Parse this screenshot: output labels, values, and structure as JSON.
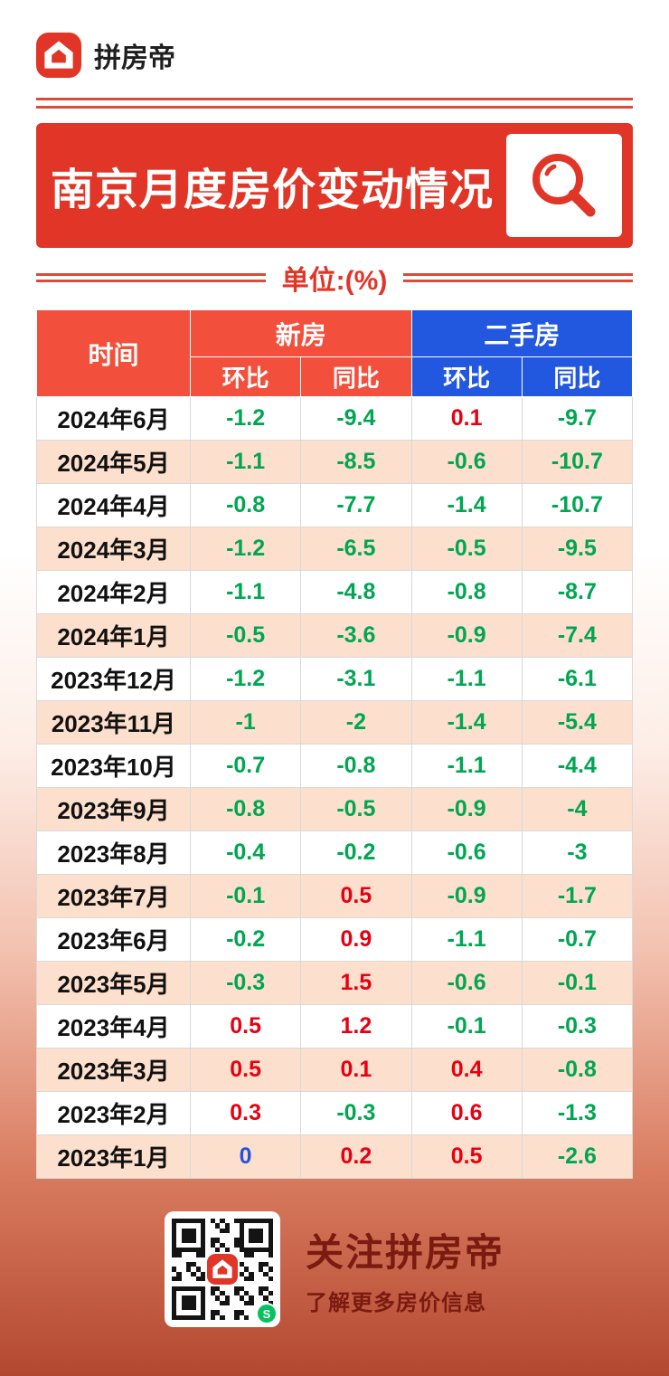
{
  "brand": {
    "name": "拼房帝"
  },
  "banner": {
    "title": "南京月度房价变动情况"
  },
  "unit": {
    "label": "单位:(%)"
  },
  "table": {
    "time_header": "时间",
    "groups": [
      {
        "label": "新房",
        "subs": [
          "环比",
          "同比"
        ]
      },
      {
        "label": "二手房",
        "subs": [
          "环比",
          "同比"
        ]
      }
    ]
  },
  "footer": {
    "title": "关注拼房帝",
    "subtitle": "了解更多房价信息"
  },
  "colors": {
    "accent_red": "#e03527",
    "header_red": "#f2503c",
    "header_blue": "#2257e0",
    "value_positive": "#e60012",
    "value_negative": "#00a651",
    "value_zero": "#2353dd",
    "row_alt": "#fcdfcc",
    "footer_text": "#7a1a10"
  },
  "chart_data": {
    "type": "table",
    "title": "南京月度房价变动情况",
    "unit": "%",
    "columns": [
      "时间",
      "新房 环比",
      "新房 同比",
      "二手房 环比",
      "二手房 同比"
    ],
    "rows": [
      [
        "2024年6月",
        "-1.2",
        "-9.4",
        "0.1",
        "-9.7"
      ],
      [
        "2024年5月",
        "-1.1",
        "-8.5",
        "-0.6",
        "-10.7"
      ],
      [
        "2024年4月",
        "-0.8",
        "-7.7",
        "-1.4",
        "-10.7"
      ],
      [
        "2024年3月",
        "-1.2",
        "-6.5",
        "-0.5",
        "-9.5"
      ],
      [
        "2024年2月",
        "-1.1",
        "-4.8",
        "-0.8",
        "-8.7"
      ],
      [
        "2024年1月",
        "-0.5",
        "-3.6",
        "-0.9",
        "-7.4"
      ],
      [
        "2023年12月",
        "-1.2",
        "-3.1",
        "-1.1",
        "-6.1"
      ],
      [
        "2023年11月",
        "-1",
        "-2",
        "-1.4",
        "-5.4"
      ],
      [
        "2023年10月",
        "-0.7",
        "-0.8",
        "-1.1",
        "-4.4"
      ],
      [
        "2023年9月",
        "-0.8",
        "-0.5",
        "-0.9",
        "-4"
      ],
      [
        "2023年8月",
        "-0.4",
        "-0.2",
        "-0.6",
        "-3"
      ],
      [
        "2023年7月",
        "-0.1",
        "0.5",
        "-0.9",
        "-1.7"
      ],
      [
        "2023年6月",
        "-0.2",
        "0.9",
        "-1.1",
        "-0.7"
      ],
      [
        "2023年5月",
        "-0.3",
        "1.5",
        "-0.6",
        "-0.1"
      ],
      [
        "2023年4月",
        "0.5",
        "1.2",
        "-0.1",
        "-0.3"
      ],
      [
        "2023年3月",
        "0.5",
        "0.1",
        "0.4",
        "-0.8"
      ],
      [
        "2023年2月",
        "0.3",
        "-0.3",
        "0.6",
        "-1.3"
      ],
      [
        "2023年1月",
        "0",
        "0.2",
        "0.5",
        "-2.6"
      ]
    ]
  }
}
